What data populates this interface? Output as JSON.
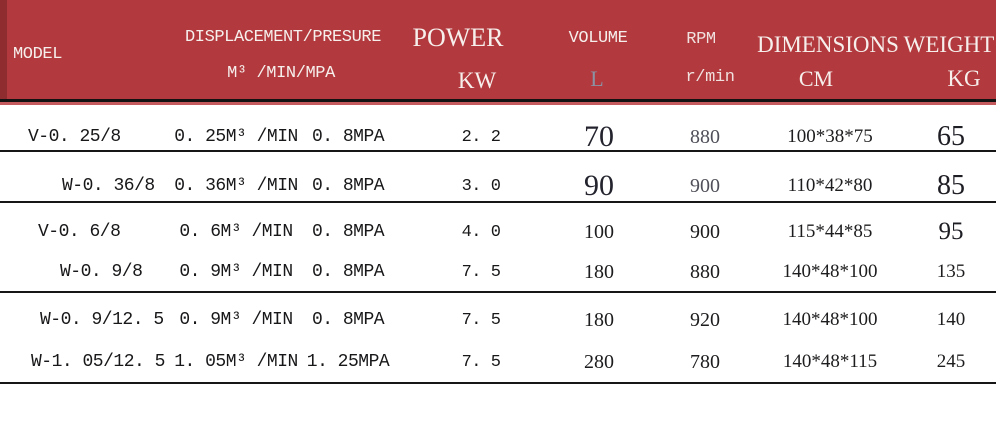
{
  "colors": {
    "header_bg": "#b23a3e",
    "header_left_strip": "#8e2c30",
    "header_underline_red": "#c45a5e",
    "rule_black": "#161616",
    "header_text": "#f6efec",
    "volume_unit_gray": "#8b92a3"
  },
  "header": {
    "model": "MODEL",
    "displacement": {
      "label": "DISPLACEMENT/PRESURE",
      "unit": "M³ /MIN/MPA"
    },
    "power": {
      "label": "POWER",
      "unit": "KW"
    },
    "volume": {
      "label": "VOLUME",
      "unit": "L"
    },
    "rpm": {
      "label": "RPM",
      "unit": "r/min"
    },
    "dimensions": {
      "label": "DIMENSIONS",
      "unit": "CM"
    },
    "weight": {
      "label": "WEIGHT",
      "unit": "KG"
    }
  },
  "rows": [
    {
      "model": "V-0. 25/8",
      "displacement": "0. 25M³ /MIN",
      "pressure": "0. 8MPA",
      "power": "2. 2",
      "volume": "70",
      "rpm": "880",
      "dimensions": "100*38*75",
      "weight": "65"
    },
    {
      "model": "W-0. 36/8",
      "displacement": "0. 36M³ /MIN",
      "pressure": "0. 8MPA",
      "power": "3. 0",
      "volume": "90",
      "rpm": "900",
      "dimensions": "110*42*80",
      "weight": "85"
    },
    {
      "model": "V-0. 6/8",
      "displacement": "0. 6M³ /MIN",
      "pressure": "0. 8MPA",
      "power": "4. 0",
      "volume": "100",
      "rpm": "900",
      "dimensions": "115*44*85",
      "weight": "95"
    },
    {
      "model": "W-0. 9/8",
      "displacement": "0. 9M³ /MIN",
      "pressure": "0. 8MPA",
      "power": "7. 5",
      "volume": "180",
      "rpm": "880",
      "dimensions": "140*48*100",
      "weight": "135"
    },
    {
      "model": "W-0. 9/12. 5",
      "displacement": "0. 9M³ /MIN",
      "pressure": "0. 8MPA",
      "power": "7. 5",
      "volume": "180",
      "rpm": "920",
      "dimensions": "140*48*100",
      "weight": "140"
    },
    {
      "model": "W-1. 05/12. 5",
      "displacement": "1. 05M³ /MIN",
      "pressure": "1. 25MPA",
      "power": "7. 5",
      "volume": "280",
      "rpm": "780",
      "dimensions": "140*48*115",
      "weight": "245"
    }
  ],
  "chart_data": {
    "type": "table",
    "title": "",
    "columns": [
      "MODEL",
      "DISPLACEMENT M³/MIN",
      "PRESURE MPA",
      "POWER KW",
      "VOLUME L",
      "RPM r/min",
      "DIMENSIONS CM",
      "WEIGHT KG"
    ],
    "rows": [
      [
        "V-0.25/8",
        0.25,
        0.8,
        2.2,
        70,
        880,
        "100*38*75",
        65
      ],
      [
        "W-0.36/8",
        0.36,
        0.8,
        3.0,
        90,
        900,
        "110*42*80",
        85
      ],
      [
        "V-0.6/8",
        0.6,
        0.8,
        4.0,
        100,
        900,
        "115*44*85",
        95
      ],
      [
        "W-0.9/8",
        0.9,
        0.8,
        7.5,
        180,
        880,
        "140*48*100",
        135
      ],
      [
        "W-0.9/12.5",
        0.9,
        0.8,
        7.5,
        180,
        920,
        "140*48*100",
        140
      ],
      [
        "W-1.05/12.5",
        1.05,
        1.25,
        7.5,
        280,
        780,
        "140*48*115",
        245
      ]
    ],
    "layout": {
      "header_background": "#b23a3e",
      "grid": "horizontal-rules-only"
    }
  }
}
